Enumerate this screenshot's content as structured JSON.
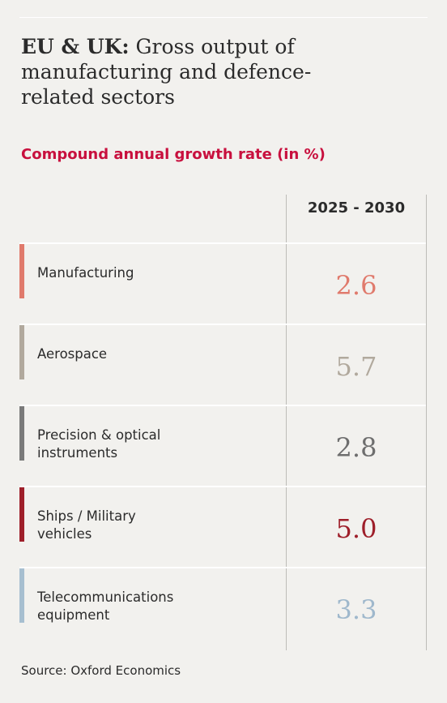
{
  "title": {
    "bold": "EU & UK:",
    "rest": " Gross output of manufacturing and defence-related sectors"
  },
  "subtitle": "Compound annual growth rate (in %)",
  "column_header": "2025 - 2030",
  "rows": [
    {
      "label_line1": "",
      "label_line2": "Manufacturing",
      "value": "2.6",
      "bar_color": "#e07a6c",
      "value_color": "#e07a6c"
    },
    {
      "label_line1": "",
      "label_line2": "Aerospace",
      "value": "5.7",
      "bar_color": "#b1a99d",
      "value_color": "#b1a99d"
    },
    {
      "label_line1": "Precision & optical",
      "label_line2": "instruments",
      "value": "2.8",
      "bar_color": "#7a7a7a",
      "value_color": "#6e6e6e"
    },
    {
      "label_line1": "Ships / Military",
      "label_line2": "vehicles",
      "value": "5.0",
      "bar_color": "#9e1f2a",
      "value_color": "#9e1f2a"
    },
    {
      "label_line1": "Telecommunications",
      "label_line2": "equipment",
      "value": "3.3",
      "bar_color": "#a7bfd0",
      "value_color": "#9fb8cc"
    }
  ],
  "source": "Source: Oxford Economics"
}
